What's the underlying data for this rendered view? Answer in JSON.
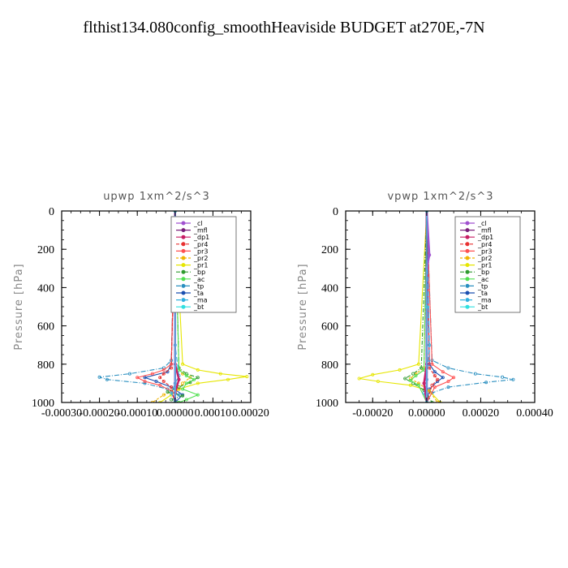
{
  "title": "flthist134.080config_smoothHeaviside  BUDGET at270E,-7N",
  "legend_names": [
    "_cl",
    "_mfl",
    "_dp1",
    "_pr4",
    "_pr3",
    "_pr2",
    "_pr1",
    "_bp",
    "_ac",
    "_tp",
    "_ta",
    "_ma",
    "_bt"
  ],
  "colors": {
    "_cl": "#a050d0",
    "_mfl": "#7a1f7a",
    "_dp1": "#c81e64",
    "_pr4": "#e83030",
    "_pr3": "#ff5050",
    "_pr2": "#f0b400",
    "_pr1": "#e6e600",
    "_bp": "#2e9a2e",
    "_ac": "#50e050",
    "_tp": "#2a8fc0",
    "_ta": "#1a4fb0",
    "_ma": "#30b0e0",
    "_bt": "#30e0e0"
  },
  "chart_data": [
    {
      "type": "line",
      "title": "upwp   1xm^2/s^3",
      "ylabel": "Pressure [hPa]",
      "xlabel": "",
      "xlim": [
        -0.0003,
        0.0002
      ],
      "ylim": [
        1000,
        0
      ],
      "xticks": [
        "-0.00030",
        "-0.00020",
        "-0.00010",
        "0.00000",
        "0.00010",
        "0.00020"
      ],
      "xtick_values": [
        -0.0003,
        -0.0002,
        -0.0001,
        0.0,
        0.0001,
        0.0002
      ],
      "yticks": [
        "0",
        "200",
        "400",
        "600",
        "800",
        "1000"
      ],
      "ytick_values": [
        0,
        200,
        400,
        600,
        800,
        1000
      ],
      "legend_position": "top-right",
      "series": [
        {
          "name": "_tp",
          "x": [
            0,
            -1e-05,
            -3e-05,
            -0.00012,
            -0.0002,
            -0.00018,
            -8e-05,
            -2e-05,
            1e-05,
            0
          ],
          "y": [
            0,
            780,
            820,
            850,
            868,
            880,
            900,
            930,
            960,
            1000
          ]
        },
        {
          "name": "_ta",
          "x": [
            0,
            -1e-05,
            -2e-05,
            -8e-05,
            -5e-05,
            -1e-05,
            2e-05,
            0
          ],
          "y": [
            0,
            800,
            840,
            870,
            890,
            920,
            960,
            1000
          ]
        },
        {
          "name": "_pr1",
          "x": [
            0,
            2e-05,
            6e-05,
            0.00012,
            0.00019,
            0.00014,
            6e-05,
            1e-05,
            -1e-05,
            -4e-05
          ],
          "y": [
            0,
            800,
            830,
            850,
            865,
            880,
            900,
            930,
            960,
            1000
          ]
        },
        {
          "name": "_pr2",
          "x": [
            0,
            1e-05,
            2e-05,
            4e-05,
            2e-05,
            1e-05,
            -3e-05,
            -6e-05
          ],
          "y": [
            0,
            820,
            850,
            870,
            900,
            930,
            960,
            1000
          ]
        },
        {
          "name": "_pr3",
          "x": [
            0,
            -1e-05,
            -3e-05,
            -6e-05,
            -0.0001,
            -8e-05,
            -4e-05,
            -1e-05,
            0
          ],
          "y": [
            0,
            800,
            830,
            850,
            870,
            890,
            910,
            940,
            1000
          ]
        },
        {
          "name": "_pr4",
          "x": [
            0,
            -1e-05,
            -3e-05,
            -4e-05,
            -3e-05,
            -1e-05,
            0
          ],
          "y": [
            0,
            820,
            850,
            870,
            890,
            920,
            1000
          ]
        },
        {
          "name": "_bp",
          "x": [
            0,
            1e-05,
            3e-05,
            6e-05,
            4e-05,
            1e-05,
            -2e-05,
            2e-05,
            -1e-05,
            1e-05
          ],
          "y": [
            0,
            820,
            850,
            870,
            895,
            920,
            945,
            965,
            985,
            1000
          ]
        },
        {
          "name": "_ac",
          "x": [
            0,
            1e-05,
            3e-05,
            5e-05,
            3e-05,
            2e-05,
            6e-05,
            3e-05,
            1e-05
          ],
          "y": [
            0,
            830,
            860,
            880,
            900,
            930,
            960,
            985,
            1000
          ]
        },
        {
          "name": "_ma",
          "x": [
            0,
            0,
            1e-05,
            0,
            -1e-05,
            0
          ],
          "y": [
            0,
            700,
            860,
            900,
            950,
            1000
          ]
        },
        {
          "name": "_dp1",
          "x": [
            0,
            0,
            1e-05,
            0,
            0
          ],
          "y": [
            0,
            800,
            880,
            950,
            1000
          ]
        },
        {
          "name": "_mfl",
          "x": [
            0,
            0,
            0
          ],
          "y": [
            0,
            500,
            1000
          ]
        },
        {
          "name": "_cl",
          "x": [
            0,
            0,
            0
          ],
          "y": [
            0,
            500,
            1000
          ]
        },
        {
          "name": "_bt",
          "x": [
            0,
            0,
            0
          ],
          "y": [
            0,
            500,
            1000
          ]
        }
      ]
    },
    {
      "type": "line",
      "title": "vpwp   1xm^2/s^3",
      "ylabel": "Pressure [hPa]",
      "xlabel": "",
      "xlim": [
        -0.0003,
        0.0004
      ],
      "ylim": [
        1000,
        0
      ],
      "xticks": [
        "-0.00020",
        "0.00000",
        "0.00020",
        "0.00040"
      ],
      "xtick_values": [
        -0.0002,
        0.0,
        0.0002,
        0.0004
      ],
      "yticks": [
        "0",
        "200",
        "400",
        "600",
        "800",
        "1000"
      ],
      "ytick_values": [
        0,
        200,
        400,
        600,
        800,
        1000
      ],
      "legend_position": "top-right",
      "series": [
        {
          "name": "_tp",
          "x": [
            0,
            2e-05,
            8e-05,
            0.00018,
            0.00028,
            0.00032,
            0.00022,
            8e-05,
            2e-05,
            0
          ],
          "y": [
            0,
            780,
            820,
            850,
            868,
            880,
            895,
            920,
            950,
            1000
          ]
        },
        {
          "name": "_ta",
          "x": [
            0,
            1e-05,
            3e-05,
            6e-05,
            4e-05,
            1e-05,
            0
          ],
          "y": [
            0,
            800,
            840,
            870,
            890,
            930,
            1000
          ]
        },
        {
          "name": "_pr1",
          "x": [
            0,
            -3e-05,
            -0.0001,
            -0.0002,
            -0.00025,
            -0.00018,
            -6e-05,
            1e-05,
            5e-05
          ],
          "y": [
            0,
            800,
            830,
            855,
            875,
            890,
            910,
            940,
            1000
          ]
        },
        {
          "name": "_pr2",
          "x": [
            0,
            -1e-05,
            -4e-05,
            -6e-05,
            -3e-05,
            1e-05,
            4e-05
          ],
          "y": [
            0,
            820,
            850,
            875,
            900,
            940,
            1000
          ]
        },
        {
          "name": "_pr3",
          "x": [
            0,
            2e-05,
            6e-05,
            0.0001,
            8e-05,
            3e-05,
            0
          ],
          "y": [
            0,
            800,
            840,
            870,
            890,
            920,
            1000
          ]
        },
        {
          "name": "_pr4",
          "x": [
            0,
            1e-05,
            3e-05,
            4e-05,
            2e-05,
            0
          ],
          "y": [
            0,
            820,
            860,
            880,
            910,
            1000
          ]
        },
        {
          "name": "_bp",
          "x": [
            0,
            -2e-05,
            -5e-05,
            -8e-05,
            -5e-05,
            -1e-05,
            2e-05
          ],
          "y": [
            0,
            820,
            850,
            875,
            900,
            935,
            1000
          ]
        },
        {
          "name": "_ac",
          "x": [
            0,
            -1e-05,
            -4e-05,
            -6e-05,
            -3e-05,
            0
          ],
          "y": [
            0,
            830,
            860,
            885,
            910,
            1000
          ]
        },
        {
          "name": "_ma",
          "x": [
            0,
            1e-05,
            0,
            -1e-05,
            0
          ],
          "y": [
            0,
            700,
            880,
            950,
            1000
          ]
        },
        {
          "name": "_dp1",
          "x": [
            0,
            0,
            -1e-05,
            0
          ],
          "y": [
            0,
            800,
            900,
            1000
          ]
        },
        {
          "name": "_mfl",
          "x": [
            0,
            0,
            0
          ],
          "y": [
            0,
            500,
            1000
          ]
        },
        {
          "name": "_cl",
          "x": [
            0,
            1e-05,
            0,
            0
          ],
          "y": [
            0,
            230,
            300,
            1000
          ]
        },
        {
          "name": "_bt",
          "x": [
            0,
            0,
            0
          ],
          "y": [
            0,
            500,
            1000
          ]
        }
      ]
    }
  ]
}
